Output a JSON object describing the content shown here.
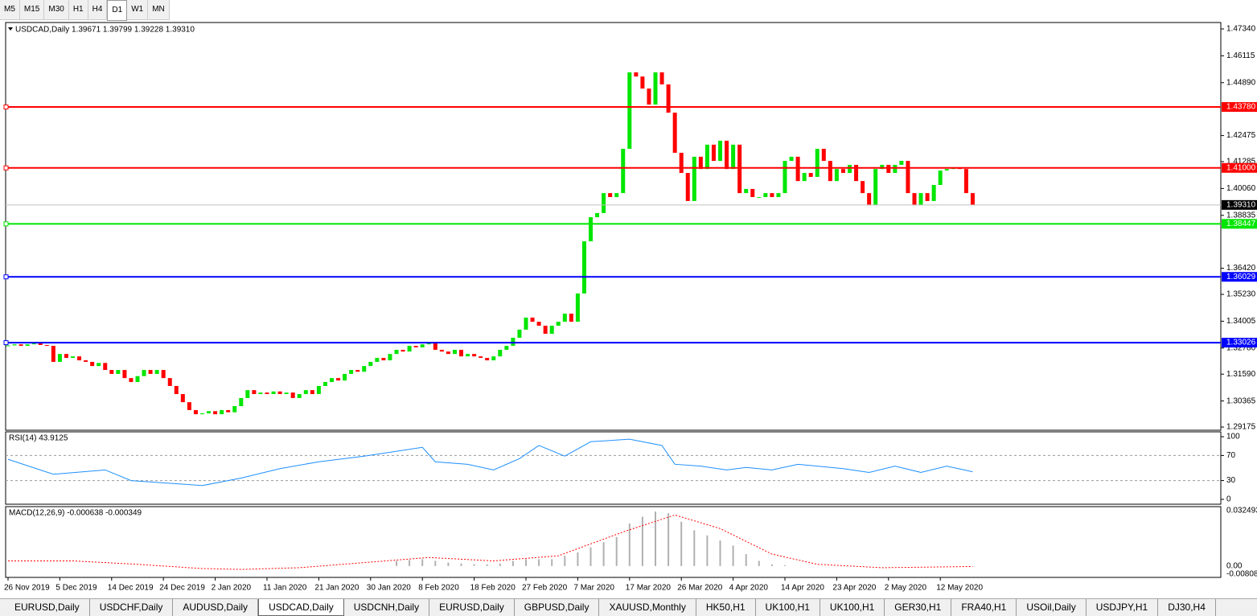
{
  "toolbar": {
    "timeframes": [
      "M5",
      "M15",
      "M30",
      "H1",
      "H4",
      "D1",
      "W1",
      "MN"
    ],
    "active": 5
  },
  "chart_data": {
    "type": "candlestick",
    "header": "USDCAD,Daily  1.39671 1.39799 1.39228 1.39310",
    "closes": [
      1.329,
      1.3295,
      1.3288,
      1.3295,
      1.33,
      1.3292,
      1.3288,
      1.3215,
      1.3251,
      1.3233,
      1.324,
      1.3222,
      1.3215,
      1.3196,
      1.321,
      1.3178,
      1.316,
      1.3178,
      1.3141,
      1.3123,
      1.315,
      1.3178,
      1.316,
      1.3178,
      1.3141,
      1.3105,
      1.3068,
      1.3031,
      1.2995,
      1.2976,
      1.298,
      1.299,
      1.2976,
      1.2995,
      1.2985,
      1.3013,
      1.305,
      1.3086,
      1.3068,
      1.3075,
      1.3068,
      1.308,
      1.3068,
      1.3075,
      1.305,
      1.3068,
      1.3086,
      1.3068,
      1.3105,
      1.3123,
      1.3141,
      1.313,
      1.316,
      1.3178,
      1.317,
      1.3196,
      1.3215,
      1.3233,
      1.3222,
      1.3251,
      1.327,
      1.3262,
      1.3288,
      1.3281,
      1.3295,
      1.3306,
      1.327,
      1.3262,
      1.3251,
      1.327,
      1.324,
      1.3251,
      1.324,
      1.3233,
      1.3222,
      1.324,
      1.327,
      1.3288,
      1.3325,
      1.3362,
      1.3417,
      1.3398,
      1.338,
      1.3343,
      1.338,
      1.3398,
      1.3435,
      1.3398,
      1.3527,
      1.3765,
      1.3875,
      1.3894,
      1.3985,
      1.3967,
      1.3985,
      1.4187,
      1.4536,
      1.4517,
      1.4462,
      1.4389,
      1.4536,
      1.4481,
      1.4352,
      1.4169,
      1.4077,
      1.3949,
      1.4151,
      1.4095,
      1.4206,
      1.4132,
      1.4224,
      1.4095,
      1.4206,
      1.3985,
      1.4004,
      1.3967,
      1.3967,
      1.3985,
      1.3967,
      1.3985,
      1.4132,
      1.4151,
      1.404,
      1.4077,
      1.4059,
      1.4187,
      1.4132,
      1.404,
      1.4095,
      1.4077,
      1.4114,
      1.404,
      1.3985,
      1.393,
      1.4095,
      1.4114,
      1.4077,
      1.4114,
      1.4132,
      1.3985,
      1.393,
      1.3985,
      1.3949,
      1.4022,
      1.4088,
      1.4095,
      1.4103,
      1.4095,
      1.3985,
      1.3931
    ],
    "up_color": "#00e600",
    "down_color": "#ff0000",
    "dates": [
      "26 Nov 2019",
      "5 Dec 2019",
      "14 Dec 2019",
      "24 Dec 2019",
      "2 Jan 2020",
      "11 Jan 2020",
      "21 Jan 2020",
      "30 Jan 2020",
      "8 Feb 2020",
      "18 Feb 2020",
      "27 Feb 2020",
      "7 Mar 2020",
      "17 Mar 2020",
      "26 Mar 2020",
      "4 Apr 2020",
      "14 Apr 2020",
      "23 Apr 2020",
      "2 May 2020",
      "12 May 2020"
    ],
    "ylim": [
      1.2903,
      1.47634
    ],
    "yticks": [
      {
        "value": 1.4734,
        "label": "1.47340"
      },
      1.46115,
      {
        "value": 1.4489,
        "label": "1.44890"
      },
      1.42475,
      1.41285,
      {
        "value": 1.4006,
        "label": "1.40060"
      },
      1.38835,
      {
        "value": 1.3642,
        "label": "1.36420"
      },
      {
        "value": 1.3523,
        "label": "1.35230"
      },
      1.34005,
      {
        "value": 1.3278,
        "label": "1.32780"
      },
      {
        "value": 1.3159,
        "label": "1.31590"
      },
      1.30365,
      1.29175
    ],
    "levels": [
      {
        "value": 1.4378,
        "label": "1.43780",
        "color": "#ff0000"
      },
      {
        "value": 1.41,
        "label": "1.41000",
        "color": "#ff0000"
      },
      {
        "value": 1.38447,
        "label": "1.38447",
        "color": "#00e600"
      },
      {
        "value": 1.36029,
        "label": "1.36029",
        "color": "#0000ff"
      },
      {
        "value": 1.33026,
        "label": "1.33026",
        "color": "#0000ff"
      }
    ],
    "last": {
      "value": 1.3931,
      "label": "1.39310"
    },
    "rsi": {
      "title": "RSI(14) 43.9125",
      "color": "#1e90ff",
      "ylim": [
        -7.8,
        107.8
      ],
      "yticks": [
        100,
        70,
        30,
        0
      ],
      "levels": [
        70,
        30
      ],
      "bar": [
        0,
        7,
        15,
        19,
        30,
        36,
        42,
        48,
        55,
        64,
        66,
        71,
        75,
        79,
        82,
        86,
        90,
        96,
        101,
        103,
        107,
        111,
        114,
        118,
        122,
        125,
        129,
        133,
        137,
        141,
        145,
        149
      ],
      "values": [
        64,
        40,
        47,
        30,
        22,
        34,
        49,
        60,
        69,
        83,
        60,
        56,
        47,
        65,
        86,
        69,
        92,
        96,
        86,
        56,
        53,
        47,
        51,
        47,
        56,
        53,
        49,
        43,
        53,
        43,
        53,
        44
      ]
    },
    "macd": {
      "title": "MACD(12,26,9) -0.000638 -0.000349",
      "hist_color": "#b0b0b0",
      "signal_color": "#ff0000",
      "ylim": [
        -0.0067,
        0.0349
      ],
      "yticks": [
        0.032493,
        {
          "value": 0,
          "label": "0.00"
        },
        -0.00808
      ],
      "hist_bar": [
        60,
        62,
        64,
        66,
        68,
        70,
        72,
        74,
        76,
        78,
        80,
        82,
        84,
        86,
        88,
        90,
        92,
        94,
        96,
        98,
        100,
        102,
        104,
        106,
        108,
        110,
        112,
        114,
        116,
        118,
        120
      ],
      "hist": [
        0.003,
        0.0035,
        0.004,
        0.003,
        0.002,
        0.0015,
        0.001,
        0.001,
        0.0015,
        0.003,
        0.004,
        0.004,
        0.004,
        0.006,
        0.008,
        0.011,
        0.014,
        0.017,
        0.025,
        0.029,
        0.032,
        0.031,
        0.026,
        0.021,
        0.018,
        0.015,
        0.012,
        0.007,
        0.003,
        0.001,
        0.0005
      ],
      "signal_bar": [
        0,
        10,
        20,
        30,
        36,
        45,
        55,
        65,
        75,
        85,
        95,
        103,
        110,
        118,
        125,
        135,
        149
      ],
      "signal": [
        0.003,
        0.003,
        0.001,
        -0.0015,
        -0.002,
        -0.001,
        0.002,
        0.005,
        0.003,
        0.006,
        0.02,
        0.03,
        0.022,
        0.007,
        0.001,
        -0.001,
        -0.0003
      ]
    }
  },
  "tabs": {
    "items": [
      "EURUSD,Daily",
      "USDCHF,Daily",
      "AUDUSD,Daily",
      "USDCAD,Daily",
      "USDCNH,Daily",
      "EURUSD,Daily",
      "GBPUSD,Daily",
      "XAUUSD,Monthly",
      "HK50,H1",
      "UK100,H1",
      "UK100,H1",
      "GER30,H1",
      "FRA40,H1",
      "USOil,Daily",
      "USDJPY,H1",
      "DJ30,H4"
    ],
    "active": 3
  }
}
